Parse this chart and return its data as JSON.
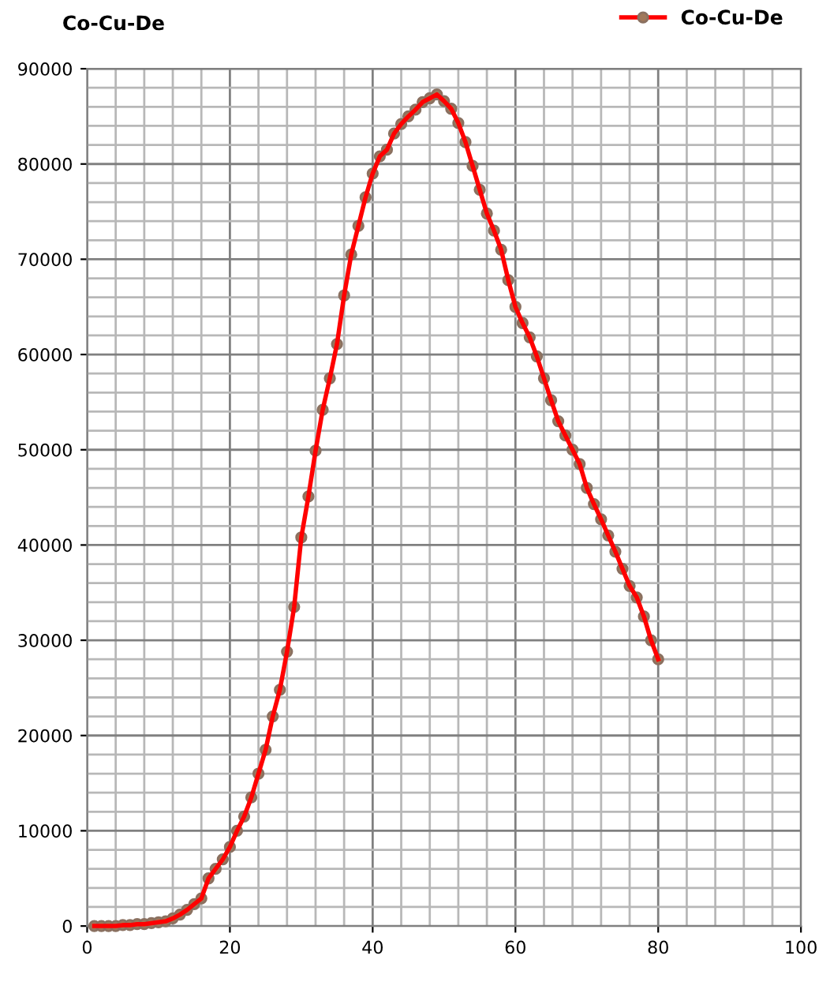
{
  "chart_data": {
    "type": "line",
    "title": "Co-Cu-De",
    "xlim": [
      0,
      100
    ],
    "xticks": [
      0,
      20,
      40,
      60,
      80,
      100
    ],
    "ylim": [
      0,
      90000
    ],
    "yticks": [
      0,
      10000,
      20000,
      30000,
      40000,
      50000,
      60000,
      70000,
      80000,
      90000
    ],
    "grid": true,
    "legend": "top right",
    "marker": "circle",
    "line_style": "solid",
    "series": [
      {
        "name": "Co-Cu-De",
        "color": "#ff0000",
        "x": [
          1,
          2,
          3,
          4,
          5,
          6,
          7,
          8,
          9,
          10,
          11,
          12,
          13,
          14,
          15,
          16,
          17,
          18,
          19,
          20,
          21,
          22,
          23,
          24,
          25,
          26,
          27,
          28,
          29,
          30,
          31,
          32,
          33,
          34,
          35,
          36,
          37,
          38,
          39,
          40,
          41,
          42,
          43,
          44,
          45,
          46,
          47,
          48,
          49,
          50,
          51,
          52,
          53,
          54,
          55,
          56,
          57,
          58,
          59,
          60,
          61,
          62,
          63,
          64,
          65,
          66,
          67,
          68,
          69,
          70,
          71,
          72,
          73,
          74,
          75,
          76,
          77,
          78,
          79,
          80
        ],
        "values": [
          0,
          0,
          0,
          0,
          100,
          100,
          200,
          200,
          300,
          400,
          500,
          800,
          1200,
          1700,
          2300,
          2900,
          5000,
          6000,
          7000,
          8300,
          10000,
          11500,
          13500,
          16000,
          18500,
          22000,
          24800,
          28800,
          33500,
          40800,
          45100,
          49900,
          54200,
          57500,
          61100,
          66200,
          70500,
          73500,
          76500,
          79000,
          80800,
          81500,
          83200,
          84200,
          85000,
          85700,
          86500,
          86900,
          87300,
          86600,
          85800,
          84300,
          82300,
          79800,
          77300,
          74800,
          73000,
          71000,
          67800,
          65000,
          63300,
          61800,
          59800,
          57500,
          55200,
          53000,
          51500,
          50000,
          48500,
          46000,
          44300,
          42700,
          41000,
          39300,
          37500,
          35700,
          34500,
          32500,
          30000,
          28000
        ]
      }
    ]
  }
}
